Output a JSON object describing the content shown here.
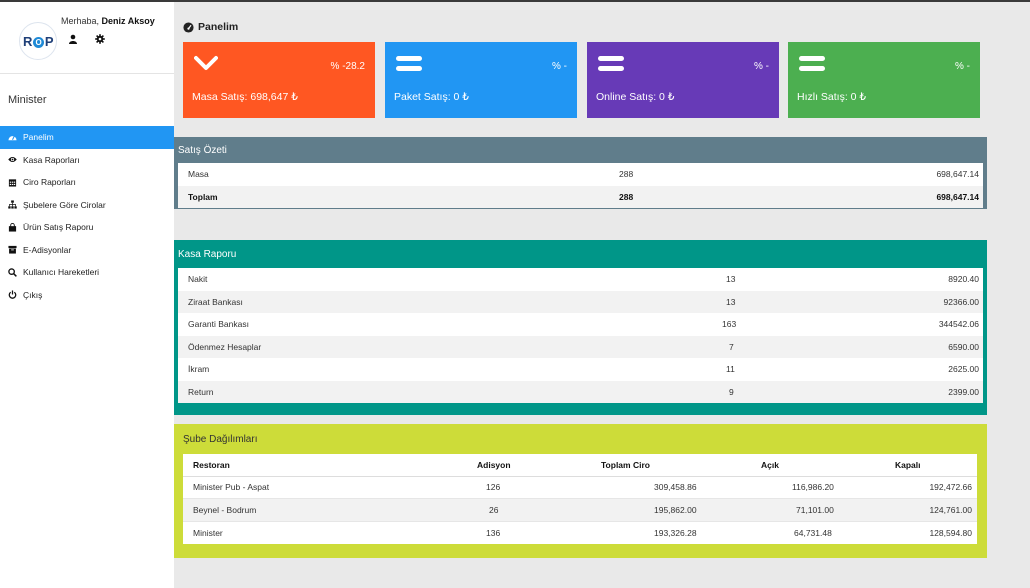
{
  "user": {
    "greeting": "Merhaba,",
    "name": "Deniz Aksoy"
  },
  "logo": {
    "text_left": "R",
    "text_mid": "O",
    "text_right": "P"
  },
  "branch": "Minister",
  "menu": [
    {
      "label": "Panelim",
      "icon": "dashboard-icon",
      "active": true
    },
    {
      "label": "Kasa Raporları",
      "icon": "eye-icon"
    },
    {
      "label": "Ciro Raporları",
      "icon": "calendar-icon"
    },
    {
      "label": "Şubelere Göre Cirolar",
      "icon": "sitemap-icon"
    },
    {
      "label": "Ürün Satış Raporu",
      "icon": "shopping-bag-icon"
    },
    {
      "label": "E-Adisyonlar",
      "icon": "archive-icon"
    },
    {
      "label": "Kullanıcı Hareketleri",
      "icon": "search-icon"
    },
    {
      "label": "Çıkış",
      "icon": "power-icon"
    }
  ],
  "page_title": "Panelim",
  "cards": [
    {
      "label": "Masa Satış: 698,647 ₺",
      "pct": "% -28.2",
      "color": "#ff5722",
      "icon": "chevron-down-icon"
    },
    {
      "label": "Paket Satış: 0 ₺",
      "pct": "% -",
      "color": "#2196f3",
      "icon": "equals-icon"
    },
    {
      "label": "Online Satış: 0 ₺",
      "pct": "% -",
      "color": "#673ab7",
      "icon": "equals-icon"
    },
    {
      "label": "Hızlı Satış: 0 ₺",
      "pct": "% -",
      "color": "#4caf50",
      "icon": "equals-icon"
    }
  ],
  "satis_ozeti": {
    "title": "Satış Özeti",
    "color": "#607d8b",
    "rows": [
      {
        "name": "Masa",
        "count": "288",
        "amount": "698,647.14"
      },
      {
        "name": "Toplam",
        "count": "288",
        "amount": "698,647.14",
        "bold": true
      }
    ]
  },
  "kasa_raporu": {
    "title": "Kasa Raporu",
    "color": "#009688",
    "rows": [
      {
        "name": "Nakit",
        "count": "13",
        "amount": "8920.40"
      },
      {
        "name": "Ziraat Bankası",
        "count": "13",
        "amount": "92366.00"
      },
      {
        "name": "Garanti Bankası",
        "count": "163",
        "amount": "344542.06"
      },
      {
        "name": "Ödenmez Hesaplar",
        "count": "7",
        "amount": "6590.00"
      },
      {
        "name": "İkram",
        "count": "11",
        "amount": "2625.00"
      },
      {
        "name": "Return",
        "count": "9",
        "amount": "2399.00"
      }
    ]
  },
  "sube": {
    "title": "Şube Dağılımları",
    "color": "#cddc39",
    "headers": [
      "Restoran",
      "Adisyon",
      "Toplam Ciro",
      "Açık",
      "Kapalı"
    ],
    "rows": [
      [
        "Minister Pub - Aspat",
        "126",
        "309,458.86",
        "116,986.20",
        "192,472.66"
      ],
      [
        "Beynel - Bodrum",
        "26",
        "195,862.00",
        "71,101.00",
        "124,761.00"
      ],
      [
        "Minister",
        "136",
        "193,326.28",
        "64,731.48",
        "128,594.80"
      ]
    ]
  }
}
